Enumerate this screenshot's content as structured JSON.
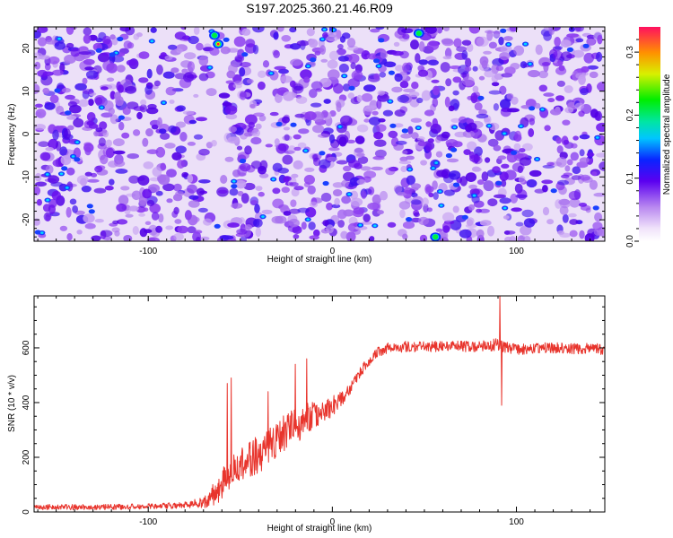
{
  "title": "S197.2025.360.21.46.R09",
  "chart_data": [
    {
      "type": "heatmap",
      "name": "spectrogram",
      "xlabel": "Height of straight line (km)",
      "ylabel": "Frequency (Hz)",
      "xlim": [
        -162,
        148
      ],
      "ylim": [
        -25,
        25
      ],
      "xticks": [
        -100,
        0,
        100
      ],
      "yticks": [
        -20,
        -10,
        0,
        10,
        20
      ],
      "colorbar": {
        "label": "Normalized spectral amplitude",
        "range": [
          0,
          0.34
        ],
        "ticks": [
          "0.0",
          "0.1",
          "0.2",
          "0.3"
        ],
        "tick_values": [
          0.0,
          0.1,
          0.2,
          0.3
        ]
      },
      "hotspots": [
        {
          "x": -62,
          "y": 21,
          "value": 0.3
        },
        {
          "x": -64,
          "y": 23,
          "value": 0.12
        },
        {
          "x": 47,
          "y": 23.5,
          "value": 0.12
        },
        {
          "x": 56,
          "y": -24,
          "value": 0.11
        }
      ],
      "quiet_bands_x": [
        -63,
        -35,
        32,
        112
      ]
    },
    {
      "type": "line",
      "name": "snr",
      "xlabel": "Height of straight line (km)",
      "ylabel": "SNR (10 * v/v)",
      "xlim": [
        -162,
        148
      ],
      "ylim": [
        0,
        790
      ],
      "xticks": [
        -100,
        0,
        100
      ],
      "yticks": [
        0,
        200,
        400,
        600
      ],
      "color": "#e8342c",
      "series": [
        {
          "name": "SNR",
          "x": [
            -162,
            -130,
            -100,
            -80,
            -70,
            -65,
            -60,
            -55,
            -50,
            -45,
            -40,
            -35,
            -30,
            -25,
            -20,
            -15,
            -10,
            -5,
            0,
            5,
            10,
            15,
            20,
            25,
            30,
            40,
            60,
            80,
            90,
            100,
            120,
            148
          ],
          "y": [
            18,
            18,
            20,
            25,
            35,
            60,
            100,
            140,
            170,
            190,
            210,
            240,
            265,
            290,
            315,
            335,
            355,
            370,
            385,
            410,
            455,
            510,
            555,
            585,
            600,
            605,
            605,
            605,
            610,
            595,
            600,
            595
          ],
          "noise": [
            10,
            10,
            10,
            12,
            20,
            40,
            60,
            60,
            60,
            70,
            70,
            70,
            70,
            70,
            70,
            60,
            50,
            40,
            40,
            30,
            20,
            20,
            20,
            20,
            20,
            20,
            20,
            20,
            25,
            20,
            20,
            20
          ]
        }
      ],
      "spikes": [
        {
          "x": -55,
          "y": 490
        },
        {
          "x": -57,
          "y": 470
        },
        {
          "x": -35,
          "y": 440
        },
        {
          "x": -20,
          "y": 540
        },
        {
          "x": -14,
          "y": 560
        },
        {
          "x": 91,
          "y": 790
        },
        {
          "x": 92,
          "y": 390
        }
      ]
    }
  ]
}
